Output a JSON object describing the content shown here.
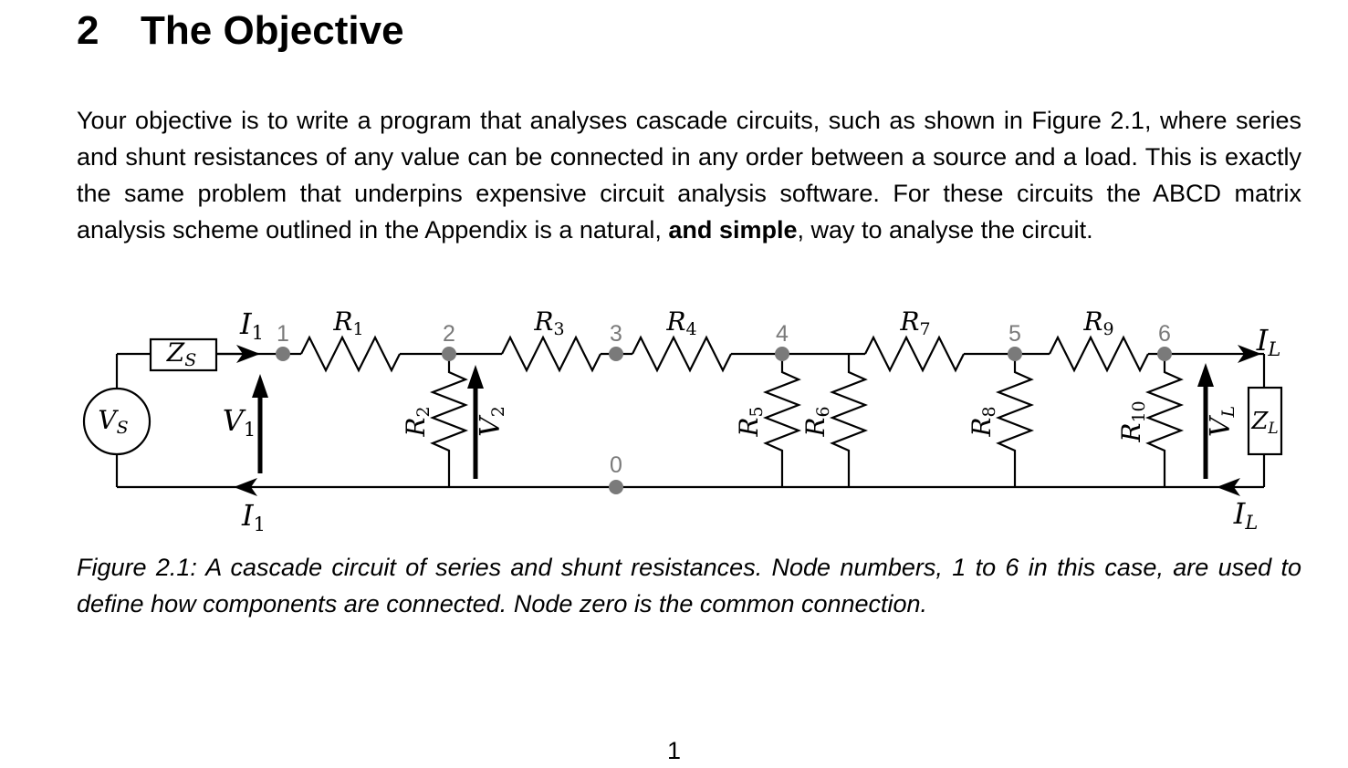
{
  "section": {
    "number": "2",
    "title": "The Objective"
  },
  "paragraph": {
    "p1": "Your objective is to write a program that analyses cascade circuits, such as shown in Figure 2.1, where series and shunt resistances of any value can be connected in any order between a source and a load.  This is exactly the same problem that underpins expensive circuit analysis software. For these circuits the ABCD matrix analysis scheme outlined in the Appendix is a natural, ",
    "bold1": "and",
    "space": " ",
    "bold2": "simple",
    "p2": ", way to analyse the circuit."
  },
  "circuit": {
    "source_label": "V",
    "source_sub": "S",
    "source_impedance": "Z",
    "source_impedance_sub": "S",
    "input_current": "I",
    "input_current_sub": "1",
    "input_voltage": "V",
    "input_voltage_sub": "1",
    "load_current": "I",
    "load_current_sub": "L",
    "load_voltage": "V",
    "load_voltage_sub": "L",
    "load_impedance": "Z",
    "load_impedance_sub": "L",
    "node_v2": "V",
    "node_v2_sub": "2",
    "resistor_letter": "R",
    "series_resistors": [
      "1",
      "3",
      "4",
      "7",
      "9"
    ],
    "shunt_resistors": [
      "2",
      "5",
      "6",
      "8",
      "10"
    ],
    "nodes": [
      "1",
      "2",
      "3",
      "4",
      "5",
      "6"
    ],
    "common_node": "0"
  },
  "figure": {
    "caption": "Figure 2.1:  A cascade circuit of series and shunt resistances. Node numbers, 1 to 6 in this case, are used to define how components are connected. Node zero is the common connection."
  },
  "page": {
    "number": "1"
  }
}
